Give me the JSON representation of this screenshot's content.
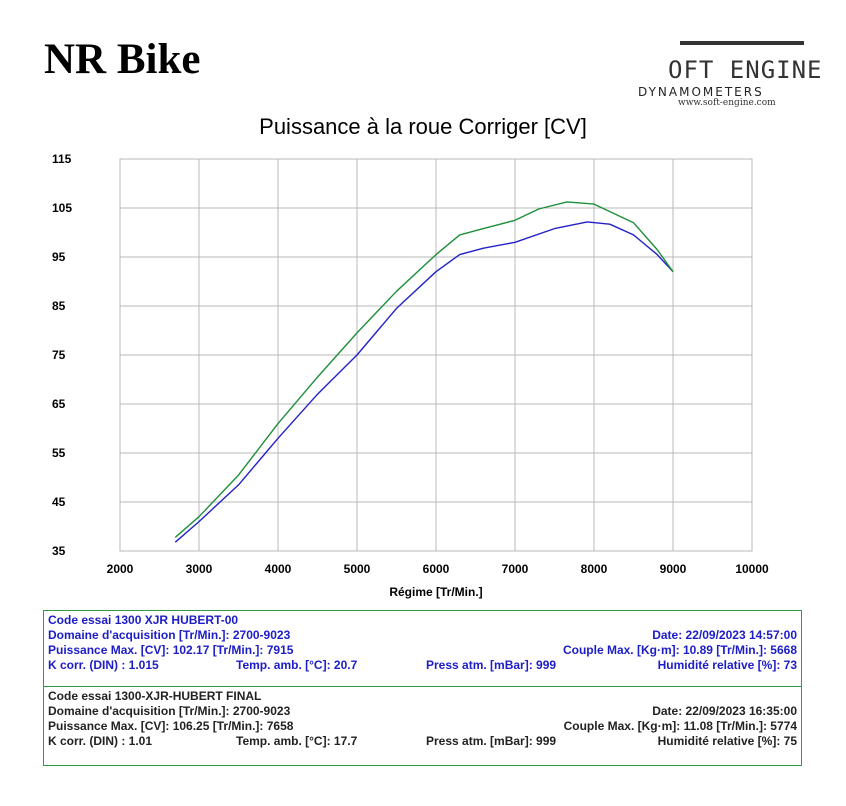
{
  "header": {
    "title": "NR Bike",
    "logo_main": "OFT ENGINE",
    "logo_sub": "DYNAMOMETERS",
    "logo_url": "www.soft-engine.com"
  },
  "chart_data": {
    "type": "line",
    "title": "Puissance à la roue Corriger [CV]",
    "xlabel": "Régime [Tr/Min.]",
    "ylabel": "",
    "xlim": [
      2000,
      10000
    ],
    "ylim": [
      35,
      115
    ],
    "xticks": [
      2000,
      3000,
      4000,
      5000,
      6000,
      7000,
      8000,
      9000,
      10000
    ],
    "yticks": [
      35,
      45,
      55,
      65,
      75,
      85,
      95,
      105,
      115
    ],
    "grid": true,
    "legend": "none",
    "series": [
      {
        "color": "#2222c8",
        "x": [
          2700,
          3000,
          3500,
          4000,
          4500,
          5000,
          5500,
          6000,
          6300,
          6600,
          7000,
          7500,
          7915,
          8200,
          8500,
          8800,
          9000
        ],
        "y": [
          36.8,
          41.0,
          48.5,
          58.0,
          67.0,
          75.0,
          84.5,
          92.0,
          95.5,
          96.8,
          98.0,
          100.8,
          102.17,
          101.7,
          99.5,
          95.5,
          92.0
        ]
      },
      {
        "color": "#1f8f3a",
        "x": [
          2700,
          3000,
          3500,
          4000,
          4500,
          5000,
          5500,
          6000,
          6300,
          6600,
          7000,
          7300,
          7658,
          8000,
          8500,
          8800,
          9000
        ],
        "y": [
          37.8,
          42.0,
          50.5,
          61.0,
          70.5,
          79.5,
          88.0,
          95.5,
          99.5,
          100.8,
          102.5,
          104.8,
          106.25,
          105.8,
          102.0,
          96.5,
          92.0
        ]
      }
    ]
  },
  "panels": [
    {
      "code": "Code essai 1300 XJR HUBERT-00",
      "domaine": "Domaine d'acquisition [Tr/Min.]: 2700-9023",
      "date": "Date: 22/09/2023 14:57:00",
      "puissance": "Puissance Max. [CV]: 102.17 [Tr/Min.]: 7915",
      "couple": "Couple Max. [Kg·m]: 10.89 [Tr/Min.]: 5668",
      "kcorr": "K corr. (DIN) : 1.015",
      "temp": "Temp. amb. [°C]: 20.7",
      "press": "Press atm. [mBar]: 999",
      "humid": "Humidité relative [%]: 73"
    },
    {
      "code": "Code essai 1300-XJR-HUBERT FINAL",
      "domaine": "Domaine d'acquisition [Tr/Min.]: 2700-9023",
      "date": "Date: 22/09/2023 16:35:00",
      "puissance": "Puissance Max. [CV]: 106.25 [Tr/Min.]: 7658",
      "couple": "Couple Max. [Kg·m]: 11.08 [Tr/Min.]: 5774",
      "kcorr": "K corr. (DIN) : 1.01",
      "temp": "Temp. amb. [°C]: 17.7",
      "press": "Press atm. [mBar]: 999",
      "humid": "Humidité relative [%]: 75"
    }
  ]
}
